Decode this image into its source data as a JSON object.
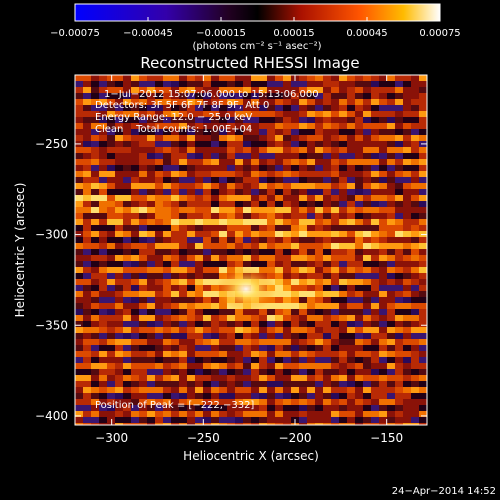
{
  "chart_data": {
    "type": "heatmap",
    "title": "Reconstructed RHESSI Image",
    "xlabel": "Heliocentric X (arcsec)",
    "ylabel": "Heliocentric Y (arcsec)",
    "xlim": [
      -320,
      -128
    ],
    "ylim": [
      -405,
      -212
    ],
    "x_ticks": [
      -300,
      -250,
      -200,
      -150
    ],
    "x_tick_labels": [
      "−300",
      "−250",
      "−200",
      "−150"
    ],
    "y_ticks": [
      -250,
      -300,
      -350,
      -400
    ],
    "y_tick_labels": [
      "−250",
      "−300",
      "−350",
      "−400"
    ],
    "colorbar": {
      "min": -0.00075,
      "max": 0.00075,
      "ticks": [
        -0.00075,
        -0.00045,
        -0.00015,
        0.00015,
        0.00045,
        0.00075
      ],
      "tick_labels": [
        "−0.00075",
        "−0.00045",
        "−0.00015",
        "0.00015",
        "0.00045",
        "0.00075"
      ],
      "units_label": "(photons cm⁻² s⁻¹ asec⁻²)"
    },
    "annotations": {
      "time_range": "1−Jul−2012 15:07:06.000 to 15:13:06.000",
      "detectors": "Detectors: 3F 5F 6F 7F 8F 9F, Att 0",
      "energy_range": "Energy Range: 12.0 − 25.0 keV",
      "method_counts": "Clean    Total counts: 1.00E+04",
      "peak_position": "Position of Peak = [−222,−332]"
    },
    "peak": {
      "x": -222,
      "y": -332
    },
    "footer_date": "24−Apr−2014 14:52"
  }
}
